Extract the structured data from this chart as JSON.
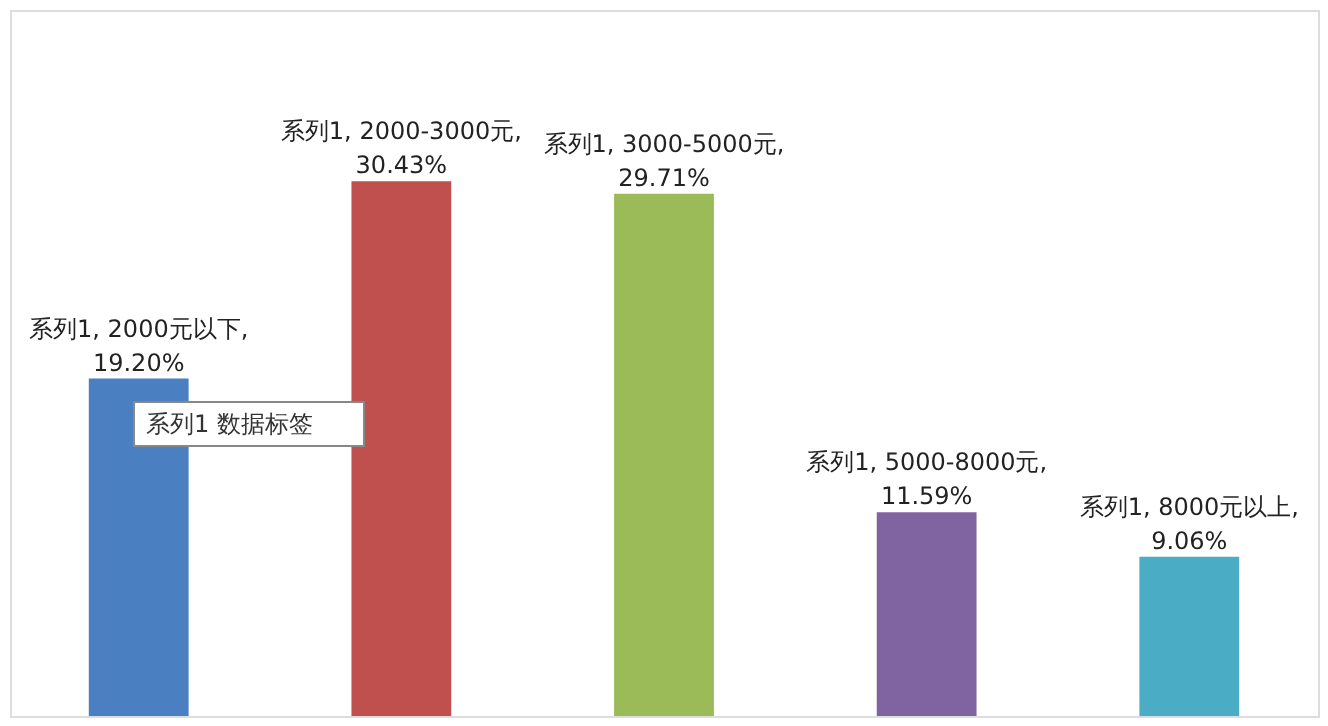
{
  "chart_data": {
    "type": "bar",
    "categories": [
      null,
      null,
      null,
      null,
      null
    ],
    "values": [
      19.2,
      30.43,
      29.71,
      11.59,
      9.06
    ],
    "colors": [
      "#4a7fc1",
      "#c0504d",
      "#9bbb59",
      "#8064a2",
      "#4bacc6"
    ],
    "data_labels": false,
    "value_labels": [
      "系列1, 2000元以下, 19.20%",
      "系列1, 2000-3000元, 30.43%",
      "系列1, 3000-5000元, 29.71%",
      "系列1, 5000-8000元, 11.59%",
      "系列1, 8000元以上, 9.06%"
    ],
    "annotations": [
      "系列1 数据标签"
    ]
  }
}
